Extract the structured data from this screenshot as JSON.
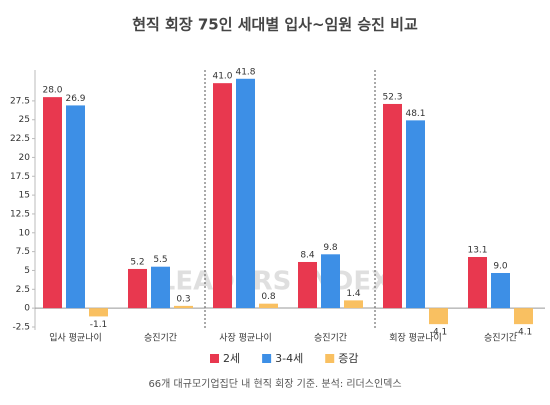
{
  "title": "현직 회장 75인 세대별 입사~임원 승진 비교",
  "source": "66개 대규모기업집단 내 현직 회장 기준. 분석: 리더스인덱스",
  "watermark": "LEADERS INDEX",
  "chart_data": [
    {
      "type": "bar",
      "categories": [
        "입사 평균나이",
        "승진기간"
      ],
      "ylim": [
        -2.9,
        31.6
      ],
      "yticks": [
        -2.5,
        0,
        2.5,
        5,
        7.5,
        10,
        12.5,
        15,
        17.5,
        20,
        22.5,
        25,
        27.5
      ],
      "series": [
        {
          "name": "2세",
          "color": "#e8384f",
          "values": [
            28.0,
            5.2
          ],
          "value_labels": [
            "28.0",
            "5.2"
          ]
        },
        {
          "name": "3-4세",
          "color": "#3d8fe6",
          "values": [
            26.9,
            5.5
          ],
          "value_labels": [
            "26.9",
            "5.5"
          ]
        },
        {
          "name": "증감",
          "color": "#f9c061",
          "values": [
            -1.1,
            0.3
          ],
          "value_labels": [
            "-1.1",
            "0.3"
          ]
        }
      ]
    },
    {
      "type": "bar",
      "categories": [
        "사장 평균나이",
        "승진기간"
      ],
      "ylim": [
        -4.0,
        43.4
      ],
      "series": [
        {
          "name": "2세",
          "color": "#e8384f",
          "values": [
            41.0,
            8.4
          ],
          "value_labels": [
            "41.0",
            "8.4"
          ]
        },
        {
          "name": "3-4세",
          "color": "#3d8fe6",
          "values": [
            41.8,
            9.8
          ],
          "value_labels": [
            "41.8",
            "9.8"
          ]
        },
        {
          "name": "증감",
          "color": "#f9c061",
          "values": [
            0.8,
            1.4
          ],
          "value_labels": [
            "0.8",
            "1.4"
          ]
        }
      ]
    },
    {
      "type": "bar",
      "categories": [
        "회장 평균나이",
        "승진기간"
      ],
      "ylim": [
        -5.6,
        61.0
      ],
      "series": [
        {
          "name": "2세",
          "color": "#e8384f",
          "values": [
            52.3,
            13.1
          ],
          "value_labels": [
            "52.3",
            "13.1"
          ]
        },
        {
          "name": "3-4세",
          "color": "#3d8fe6",
          "values": [
            48.1,
            9.0
          ],
          "value_labels": [
            "48.1",
            "9.0"
          ]
        },
        {
          "name": "증감",
          "color": "#f9c061",
          "values": [
            -4.1,
            -4.1
          ],
          "value_labels": [
            "-4.1",
            "-4.1"
          ]
        }
      ]
    }
  ]
}
